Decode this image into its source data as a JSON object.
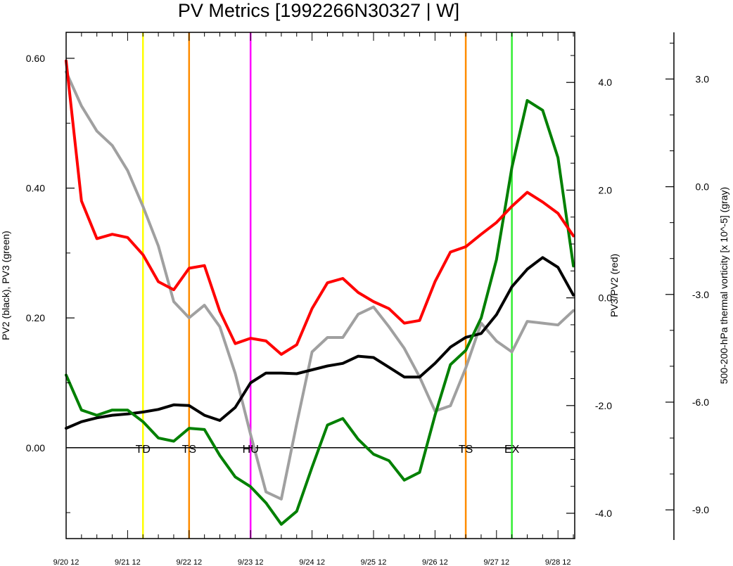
{
  "chart_data": {
    "type": "line",
    "title": "PV Metrics [1992266N30327 | W]",
    "x_ticks": [
      "9/20 12",
      "9/21 12",
      "9/22 12",
      "9/23 12",
      "9/24 12",
      "9/25 12",
      "9/26 12",
      "9/27 12",
      "9/28 12"
    ],
    "x_range": [
      0,
      33
    ],
    "axes": {
      "left": {
        "label": "PV2 (black), PV3 (green)",
        "ylim": [
          -0.14,
          0.64
        ],
        "ticks": [
          "0.60",
          "0.40",
          "0.20",
          "0.00"
        ],
        "tick_values": [
          0.6,
          0.4,
          0.2,
          0.0
        ]
      },
      "right": {
        "label": "PV3/PV2 (red)",
        "ylim": [
          -4.47,
          4.93
        ],
        "ticks": [
          "4.0",
          "2.0",
          "0.0",
          "-2.0",
          "-4.0"
        ],
        "tick_values": [
          4.0,
          2.0,
          0.0,
          -2.0,
          -4.0
        ]
      },
      "far_right": {
        "label": "500-200-hPa thermal vorticity [x 10^-5] (gray)",
        "ylim": [
          -9.8,
          4.3
        ],
        "ticks": [
          "3.0",
          "0.0",
          "-3.0",
          "-6.0",
          "-9.0"
        ],
        "tick_values": [
          3.0,
          0.0,
          -3.0,
          -6.0,
          -9.0
        ]
      }
    },
    "series": [
      {
        "axis": "left",
        "color": "#000000",
        "values": [
          0.03,
          0.04,
          0.046,
          0.05,
          0.052,
          0.055,
          0.059,
          0.066,
          0.065,
          0.05,
          0.042,
          0.062,
          0.1,
          0.115,
          0.115,
          0.114,
          0.12,
          0.126,
          0.13,
          0.141,
          0.139,
          0.124,
          0.109,
          0.109,
          0.13,
          0.155,
          0.17,
          0.176,
          0.205,
          0.248,
          0.275,
          0.293,
          0.278,
          0.235
        ]
      },
      {
        "axis": "left",
        "color": "#008000",
        "values": [
          0.112,
          0.058,
          0.05,
          0.058,
          0.058,
          0.04,
          0.015,
          0.01,
          0.03,
          0.028,
          -0.012,
          -0.045,
          -0.06,
          -0.085,
          -0.118,
          -0.098,
          -0.03,
          0.035,
          0.045,
          0.013,
          -0.01,
          -0.02,
          -0.05,
          -0.038,
          0.05,
          0.128,
          0.15,
          0.2,
          0.29,
          0.432,
          0.535,
          0.52,
          0.447,
          0.28
        ]
      },
      {
        "axis": "right",
        "color": "#ff0000",
        "values": [
          4.4,
          1.8,
          1.1,
          1.18,
          1.12,
          0.8,
          0.3,
          0.15,
          0.55,
          0.6,
          -0.25,
          -0.85,
          -0.75,
          -0.8,
          -1.05,
          -0.87,
          -0.2,
          0.28,
          0.36,
          0.1,
          -0.07,
          -0.2,
          -0.47,
          -0.42,
          0.3,
          0.85,
          0.95,
          1.18,
          1.4,
          1.7,
          1.96,
          1.78,
          1.57,
          1.15
        ]
      },
      {
        "axis": "far_right",
        "color": "#a0a0a0",
        "values": [
          3.2,
          2.25,
          1.55,
          1.15,
          0.45,
          -0.55,
          -1.65,
          -3.2,
          -3.65,
          -3.3,
          -3.9,
          -5.2,
          -6.9,
          -8.5,
          -8.7,
          -6.6,
          -4.6,
          -4.2,
          -4.2,
          -3.55,
          -3.35,
          -3.9,
          -4.5,
          -5.3,
          -6.25,
          -6.1,
          -5.05,
          -3.8,
          -4.3,
          -4.6,
          -3.75,
          -3.8,
          -3.85,
          -3.45
        ]
      }
    ],
    "stage_lines": [
      {
        "label": "TD",
        "x": 5.0,
        "color": "#ffff00"
      },
      {
        "label": "TS",
        "x": 8.0,
        "color": "#ff8c00"
      },
      {
        "label": "HU",
        "x": 12.0,
        "color": "#ff00ff"
      },
      {
        "label": "TS",
        "x": 26.0,
        "color": "#ff8c00"
      },
      {
        "label": "EX",
        "x": 29.0,
        "color": "#33ee33"
      }
    ],
    "zero_line": true,
    "grid": false,
    "legend": "none"
  }
}
